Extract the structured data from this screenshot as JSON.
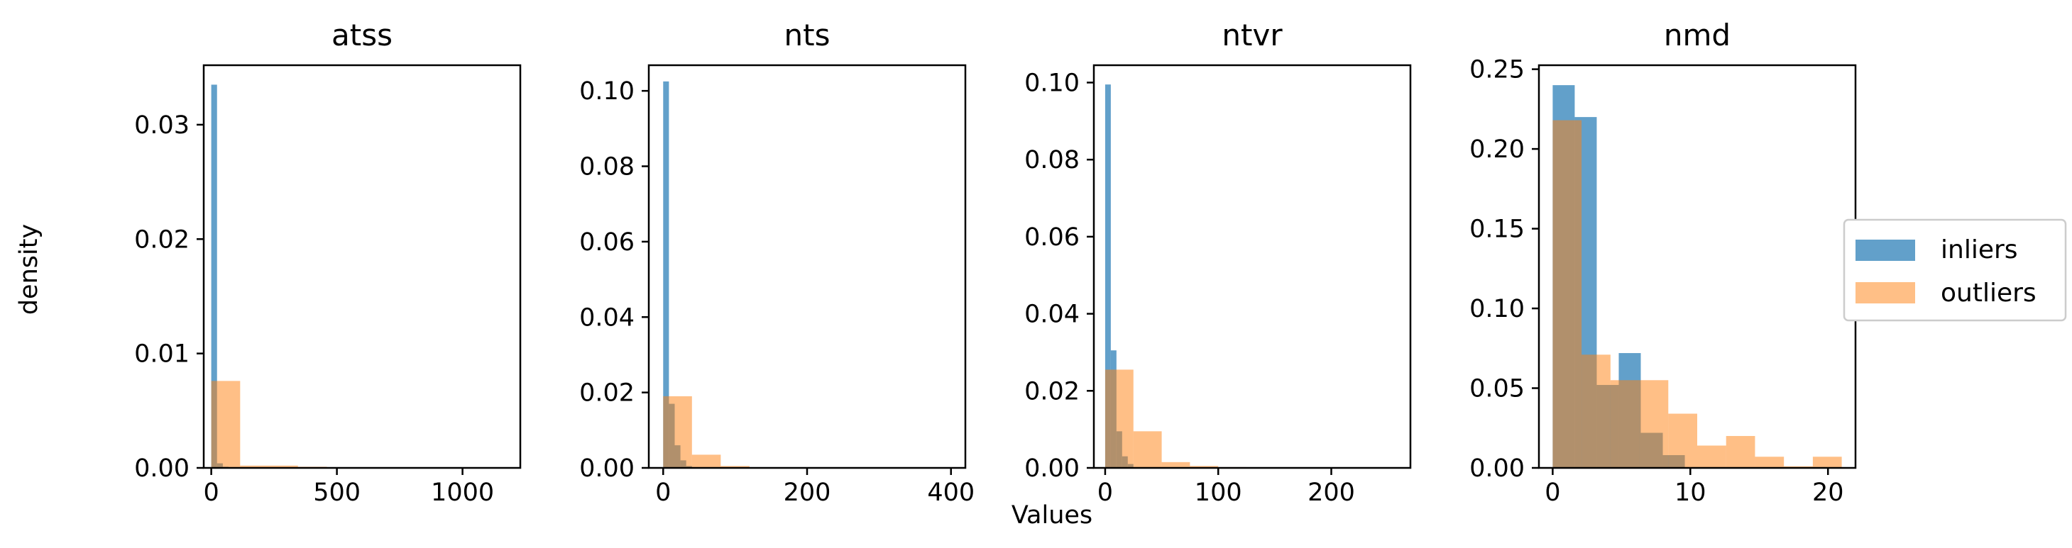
{
  "figure": {
    "ylabel": "density",
    "xlabel": "Values",
    "legend": {
      "placement": "right",
      "items": [
        {
          "label": "inliers",
          "color": "#1f77b4"
        },
        {
          "label": "outliers",
          "color": "#ff7f0e"
        }
      ]
    }
  },
  "colors": {
    "inliers": "#1f77b4",
    "outliers": "#ff7f0e",
    "alpha": 0.7
  },
  "chart_data": [
    {
      "type": "histogram",
      "title": "atss",
      "xlim": [
        -30,
        1230
      ],
      "ylim": [
        0,
        0.0352
      ],
      "xticks": [
        0,
        500,
        1000
      ],
      "xtick_labels": [
        "0",
        "500",
        "1000"
      ],
      "yticks": [
        0,
        0.01,
        0.02,
        0.03
      ],
      "ytick_labels": [
        "0.00",
        "0.01",
        "0.02",
        "0.03"
      ],
      "series": [
        {
          "name": "inliers",
          "bins": [
            [
              0,
              23,
              0.0335
            ],
            [
              23,
              46,
              0.0004
            ],
            [
              46,
              69,
              0.0001
            ],
            [
              69,
              92,
              5e-05
            ],
            [
              92,
              115,
              5e-05
            ]
          ]
        },
        {
          "name": "outliers",
          "bins": [
            [
              0,
              115,
              0.0076
            ],
            [
              115,
              230,
              0.0002
            ],
            [
              230,
              345,
              0.0002
            ],
            [
              345,
              460,
              0.0001
            ],
            [
              460,
              575,
              5e-05
            ],
            [
              575,
              690,
              3e-05
            ],
            [
              690,
              805,
              2e-05
            ],
            [
              805,
              920,
              1e-05
            ],
            [
              920,
              1035,
              1e-05
            ],
            [
              1035,
              1150,
              2e-05
            ]
          ]
        }
      ]
    },
    {
      "type": "histogram",
      "title": "nts",
      "xlim": [
        -20,
        420
      ],
      "ylim": [
        0,
        0.1068
      ],
      "xticks": [
        0,
        200,
        400
      ],
      "xtick_labels": [
        "0",
        "200",
        "400"
      ],
      "yticks": [
        0,
        0.02,
        0.04,
        0.06,
        0.08,
        0.1
      ],
      "ytick_labels": [
        "0.00",
        "0.02",
        "0.04",
        "0.06",
        "0.08",
        "0.10"
      ],
      "series": [
        {
          "name": "inliers",
          "bins": [
            [
              0,
              8,
              0.1025
            ],
            [
              8,
              16,
              0.017
            ],
            [
              16,
              24,
              0.006
            ],
            [
              24,
              32,
              0.002
            ],
            [
              32,
              40,
              0.0005
            ]
          ]
        },
        {
          "name": "outliers",
          "bins": [
            [
              0,
              40,
              0.019
            ],
            [
              40,
              80,
              0.0035
            ],
            [
              80,
              120,
              0.0005
            ],
            [
              120,
              160,
              0.0001
            ],
            [
              160,
              200,
              3e-05
            ],
            [
              200,
              240,
              2e-05
            ],
            [
              240,
              280,
              1e-05
            ],
            [
              280,
              320,
              1e-05
            ],
            [
              320,
              360,
              1e-05
            ],
            [
              360,
              400,
              1e-05
            ]
          ]
        }
      ]
    },
    {
      "type": "histogram",
      "title": "ntvr",
      "xlim": [
        -10,
        270
      ],
      "ylim": [
        0,
        0.1045
      ],
      "xticks": [
        0,
        100,
        200
      ],
      "xtick_labels": [
        "0",
        "100",
        "200"
      ],
      "yticks": [
        0,
        0.02,
        0.04,
        0.06,
        0.08,
        0.1
      ],
      "ytick_labels": [
        "0.00",
        "0.02",
        "0.04",
        "0.06",
        "0.08",
        "0.10"
      ],
      "series": [
        {
          "name": "inliers",
          "bins": [
            [
              0,
              5,
              0.0995
            ],
            [
              5,
              10,
              0.0305
            ],
            [
              10,
              15,
              0.0095
            ],
            [
              15,
              20,
              0.003
            ],
            [
              20,
              25,
              0.001
            ]
          ]
        },
        {
          "name": "outliers",
          "bins": [
            [
              0,
              25,
              0.0255
            ],
            [
              25,
              50,
              0.0095
            ],
            [
              50,
              75,
              0.0015
            ],
            [
              75,
              100,
              0.0005
            ],
            [
              100,
              125,
              0.0002
            ],
            [
              125,
              150,
              5e-05
            ],
            [
              150,
              175,
              2e-05
            ],
            [
              175,
              200,
              1e-05
            ],
            [
              200,
              225,
              1e-05
            ],
            [
              225,
              250,
              1e-05
            ]
          ]
        }
      ]
    },
    {
      "type": "histogram",
      "title": "nmd",
      "xlim": [
        -1,
        22
      ],
      "ylim": [
        0,
        0.2525
      ],
      "xticks": [
        0,
        10,
        20
      ],
      "xtick_labels": [
        "0",
        "10",
        "20"
      ],
      "yticks": [
        0,
        0.05,
        0.1,
        0.15,
        0.2,
        0.25
      ],
      "ytick_labels": [
        "0.00",
        "0.05",
        "0.10",
        "0.15",
        "0.20",
        "0.25"
      ],
      "series": [
        {
          "name": "inliers",
          "bins": [
            [
              0,
              1.6,
              0.24
            ],
            [
              1.6,
              3.2,
              0.22
            ],
            [
              3.2,
              4.8,
              0.052
            ],
            [
              4.8,
              6.4,
              0.072
            ],
            [
              6.4,
              8.0,
              0.022
            ],
            [
              8.0,
              9.6,
              0.008
            ]
          ]
        },
        {
          "name": "outliers",
          "bins": [
            [
              0,
              2.1,
              0.218
            ],
            [
              2.1,
              4.2,
              0.071
            ],
            [
              4.2,
              6.3,
              0.055
            ],
            [
              6.3,
              8.4,
              0.055
            ],
            [
              8.4,
              10.5,
              0.034
            ],
            [
              10.5,
              12.6,
              0.014
            ],
            [
              12.6,
              14.7,
              0.02
            ],
            [
              14.7,
              16.8,
              0.007
            ],
            [
              16.8,
              18.9,
              0.001
            ],
            [
              18.9,
              21.0,
              0.007
            ]
          ]
        }
      ]
    }
  ]
}
